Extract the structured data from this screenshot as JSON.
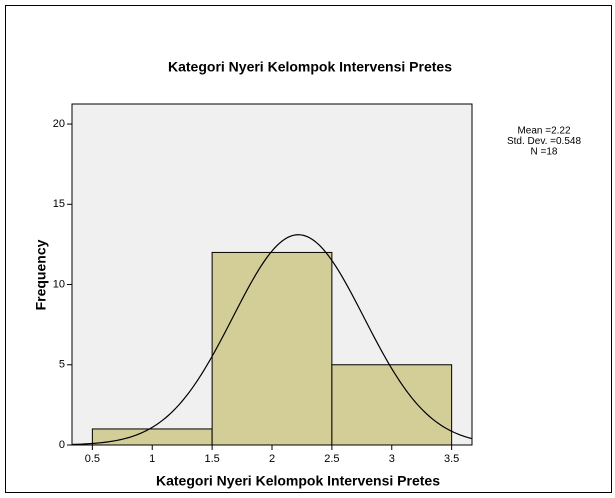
{
  "chart_data": {
    "type": "histogram",
    "title": "Kategori Nyeri Kelompok Intervensi Pretes",
    "x_label": "Kategori Nyeri Kelompok Intervensi Pretes",
    "y_label": "Frequency",
    "bins": [
      0.5,
      1.5,
      2.5,
      3.5
    ],
    "values": [
      1,
      12,
      5
    ],
    "color": "#d3cd98",
    "background": "#f0f0f0",
    "stats": [
      2.22,
      0.548,
      18
    ],
    "stats_labels": [
      "Mean =2.22",
      "Std. Dev. =0.548",
      "N =18"
    ],
    "normal_curve": true,
    "xlim": [
      0.33,
      3.67
    ],
    "xticks": [
      0.5,
      1,
      1.5,
      2,
      2.5,
      3,
      3.5
    ],
    "ylim": [
      0,
      21.25
    ],
    "yticks": [
      0,
      5,
      10,
      15,
      20
    ],
    "grid": false
  }
}
